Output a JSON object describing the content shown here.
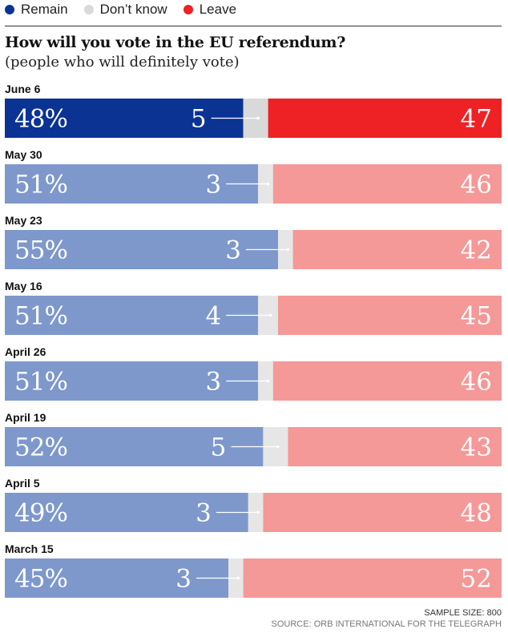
{
  "legend": [
    {
      "label": "Remain",
      "color": "#0b3394"
    },
    {
      "label": "Don’t know",
      "color": "#d9d9d9"
    },
    {
      "label": "Leave",
      "color": "#ee2124"
    }
  ],
  "title": "How will you vote in the EU referendum?",
  "subtitle": "(people who will definitely vote)",
  "chart_data": {
    "type": "bar",
    "stacked": true,
    "orientation": "horizontal",
    "categories": [
      "June 6",
      "May 30",
      "May 23",
      "May 16",
      "April 26",
      "April 19",
      "April 5",
      "March 15"
    ],
    "series": [
      {
        "name": "Remain",
        "values": [
          48,
          51,
          55,
          51,
          51,
          52,
          49,
          45
        ],
        "labels": [
          "48%",
          "51%",
          "55%",
          "51%",
          "51%",
          "52%",
          "49%",
          "45%"
        ]
      },
      {
        "name": "Don’t know",
        "values": [
          5,
          3,
          3,
          4,
          3,
          5,
          3,
          3
        ],
        "labels": [
          "5",
          "3",
          "3",
          "4",
          "3",
          "5",
          "3",
          "3"
        ]
      },
      {
        "name": "Leave",
        "values": [
          47,
          46,
          42,
          45,
          46,
          43,
          48,
          52
        ],
        "labels": [
          "47",
          "46",
          "42",
          "45",
          "46",
          "43",
          "48",
          "52"
        ]
      }
    ],
    "colors_highlight": {
      "remain": "#0b3394",
      "dontknow": "#d9d9d9",
      "leave": "#ee2124"
    },
    "colors_muted": {
      "remain": "#7e98cc",
      "dontknow": "#e6e6e6",
      "leave": "#f59898"
    },
    "highlighted_category": "June 6",
    "xlim": [
      0,
      100
    ]
  },
  "footer": {
    "sample_size": "SAMPLE SIZE: 800",
    "source": "SOURCE: ORB INTERNATIONAL FOR THE TELEGRAPH"
  }
}
